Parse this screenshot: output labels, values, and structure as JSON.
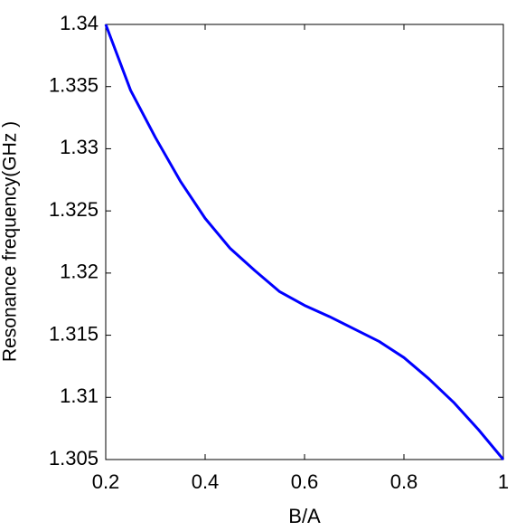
{
  "chart_data": {
    "type": "line",
    "x_label": "B/A",
    "y_label": "Resonance frequency(GHz )",
    "xlim": [
      0.2,
      1
    ],
    "xticks": [
      0.2,
      0.4,
      0.6,
      0.8,
      1
    ],
    "ylim": [
      1.305,
      1.34
    ],
    "yticks": [
      1.305,
      1.31,
      1.315,
      1.32,
      1.325,
      1.33,
      1.335,
      1.34
    ],
    "x": [
      0.2,
      0.25,
      0.3,
      0.35,
      0.4,
      0.45,
      0.5,
      0.55,
      0.6,
      0.65,
      0.7,
      0.75,
      0.8,
      0.85,
      0.9,
      0.95,
      1.0
    ],
    "series": [
      {
        "color": "#0000ff",
        "values": [
          1.34,
          1.3347,
          1.3309,
          1.3274,
          1.3244,
          1.322,
          1.3202,
          1.3185,
          1.3174,
          1.3165,
          1.3155,
          1.3145,
          1.3132,
          1.3115,
          1.3096,
          1.3074,
          1.305
        ]
      }
    ]
  }
}
